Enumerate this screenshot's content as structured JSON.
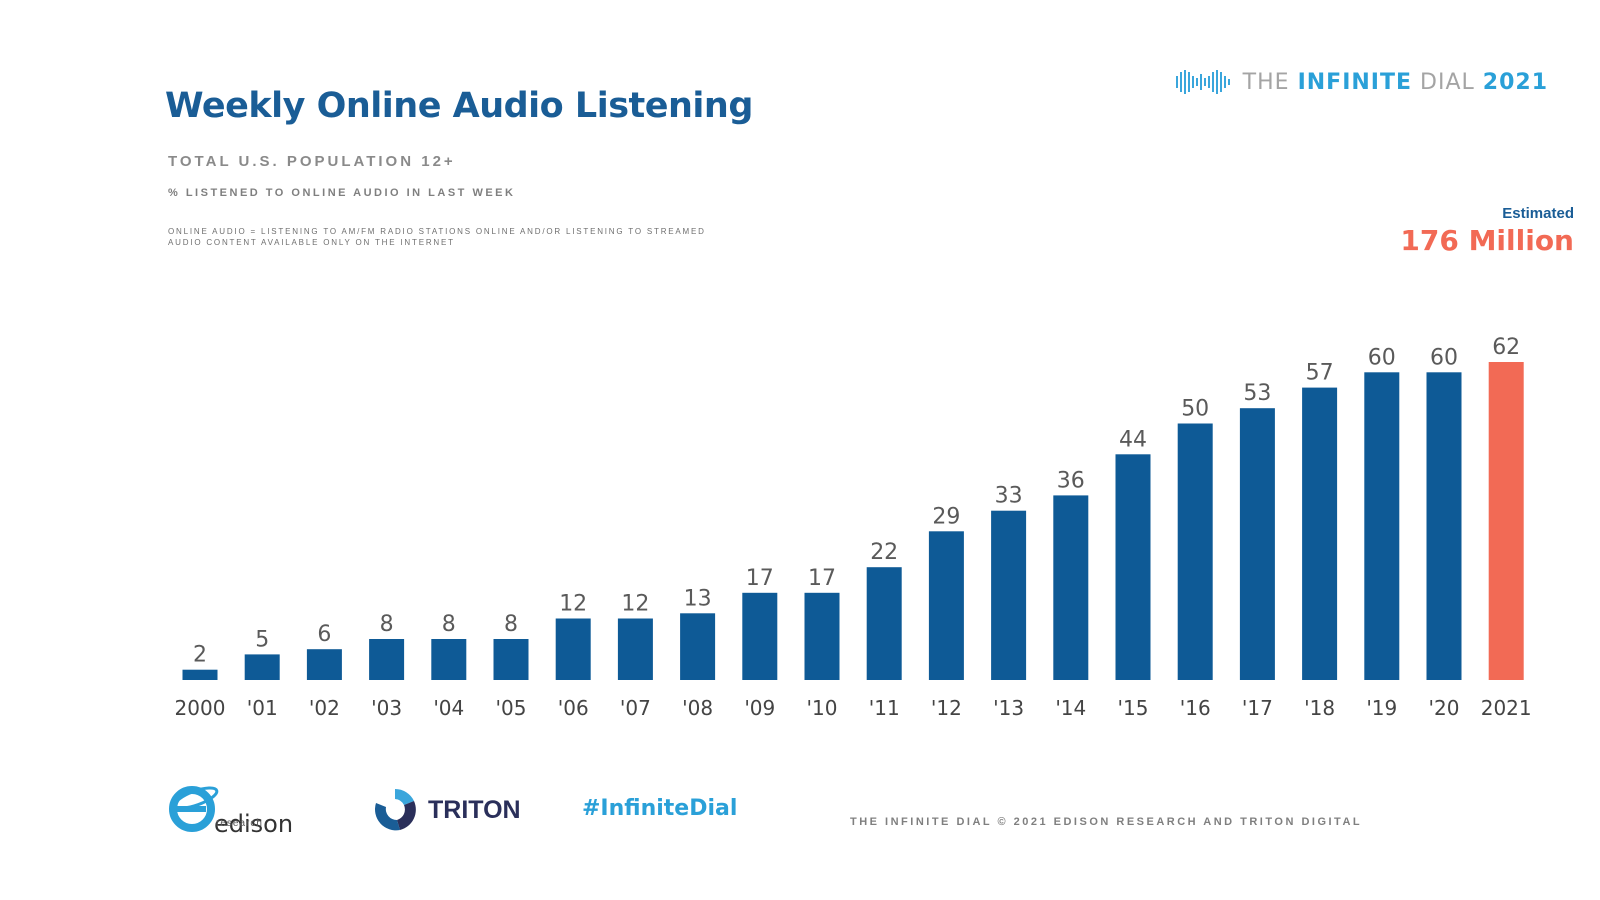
{
  "header": {
    "title": "Weekly Online Audio Listening",
    "subtitle": "TOTAL U.S. POPULATION 12+",
    "measure": "% LISTENED TO ONLINE AUDIO IN LAST WEEK",
    "definition": "ONLINE AUDIO = LISTENING TO AM/FM RADIO STATIONS ONLINE AND/OR LISTENING TO STREAMED AUDIO CONTENT AVAILABLE ONLY ON THE INTERNET"
  },
  "brand": {
    "prefix": "THE",
    "highlight": "INFINITE",
    "suffix": "DIAL",
    "year": "2021"
  },
  "estimate": {
    "label": "Estimated",
    "value": "176 Million"
  },
  "chart_data": {
    "type": "bar",
    "categories": [
      "2000",
      "'01",
      "'02",
      "'03",
      "'04",
      "'05",
      "'06",
      "'07",
      "'08",
      "'09",
      "'10",
      "'11",
      "'12",
      "'13",
      "'14",
      "'15",
      "'16",
      "'17",
      "'18",
      "'19",
      "'20",
      "2021"
    ],
    "values": [
      2,
      5,
      6,
      8,
      8,
      8,
      12,
      12,
      13,
      17,
      17,
      22,
      29,
      33,
      36,
      44,
      50,
      53,
      57,
      60,
      60,
      62
    ],
    "ylim": [
      0,
      62
    ],
    "grid": false,
    "colors": {
      "default": "#0e5a96",
      "highlight": "#f26a55"
    },
    "highlight_category": "2021"
  },
  "footer": {
    "edison_word": "edison",
    "edison_sub": "research",
    "triton_word": "TRITON",
    "hashtag": "#InfiniteDial",
    "copyright": "THE INFINITE DIAL   © 2021 EDISON RESEARCH AND TRITON DIGITAL"
  }
}
